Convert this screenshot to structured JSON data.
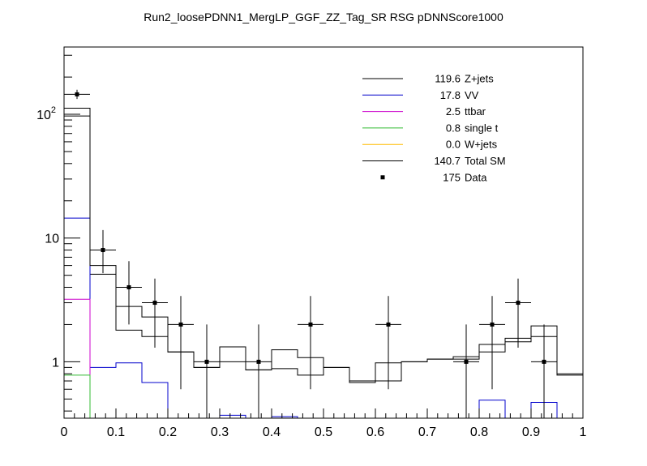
{
  "chart_data": {
    "type": "histogram",
    "title": "Run2_loosePDNN1_MergLP_GGF_ZZ_Tag_SR RSG  pDNNScore1000",
    "xlabel": "",
    "ylabel": "",
    "xlim": [
      0,
      1
    ],
    "ylim": [
      0.35,
      350
    ],
    "y_scale": "log",
    "x_ticks": [
      "0",
      "0.1",
      "0.2",
      "0.3",
      "0.4",
      "0.5",
      "0.6",
      "0.7",
      "0.8",
      "0.9",
      "1"
    ],
    "y_ticks": [
      {
        "value": 1,
        "label": "1"
      },
      {
        "value": 10,
        "label": "10"
      },
      {
        "value": 100,
        "label": "10",
        "exponent": "2"
      }
    ],
    "grid": false,
    "legend_position": "top-right",
    "bin_edges": [
      0,
      0.05,
      0.1,
      0.15,
      0.2,
      0.25,
      0.3,
      0.35,
      0.4,
      0.45,
      0.5,
      0.55,
      0.6,
      0.65,
      0.7,
      0.75,
      0.8,
      0.85,
      0.9,
      0.95,
      1.0
    ],
    "series": [
      {
        "name": "Z+jets",
        "total": "119.6",
        "color": "#000000",
        "kind": "stack-step",
        "values": [
          97,
          5.1,
          1.8,
          1.6,
          1.2,
          0.9,
          1.0,
          0.86,
          0.88,
          0.78,
          0.9,
          0.68,
          0.7,
          1.0,
          1.05,
          1.05,
          1.2,
          1.45,
          1.6,
          0.8
        ]
      },
      {
        "name": "VV",
        "total": "17.8",
        "color": "#0000cc",
        "kind": "step",
        "values": [
          14.5,
          0.9,
          0.98,
          0.68,
          0.0,
          0.0,
          0.37,
          0.0,
          0.36,
          0.0,
          0.0,
          0.0,
          0.0,
          0.0,
          0.0,
          0.0,
          0.49,
          0.0,
          0.47,
          0.0
        ]
      },
      {
        "name": "ttbar",
        "total": "2.5",
        "color": "#cc00cc",
        "kind": "step",
        "values": [
          3.2,
          0,
          0,
          0,
          0,
          0,
          0,
          0,
          0,
          0,
          0,
          0,
          0,
          0,
          0,
          0,
          0,
          0,
          0,
          0
        ]
      },
      {
        "name": "single t",
        "total": "0.8",
        "color": "#33bb33",
        "kind": "step",
        "values": [
          0.78,
          0,
          0,
          0,
          0,
          0,
          0,
          0,
          0,
          0,
          0,
          0,
          0,
          0,
          0,
          0,
          0,
          0,
          0,
          0
        ]
      },
      {
        "name": "W+jets",
        "total": "0.0",
        "color": "#ffbb00",
        "kind": "step",
        "values": [
          0,
          0,
          0,
          0,
          0,
          0,
          0,
          0,
          0,
          0,
          0,
          0,
          0,
          0,
          0,
          0,
          0,
          0,
          0,
          0
        ]
      },
      {
        "name": "Total SM",
        "total": "140.7",
        "color": "#000000",
        "kind": "step",
        "values": [
          112,
          6.0,
          2.8,
          2.3,
          1.2,
          0.9,
          1.32,
          0.86,
          1.25,
          1.08,
          0.9,
          0.7,
          0.98,
          1.0,
          1.05,
          1.1,
          1.38,
          1.55,
          1.95,
          0.78
        ]
      }
    ],
    "data_points": {
      "name": "Data",
      "total": "175",
      "color": "#000000",
      "points": [
        {
          "x": 0.025,
          "y": 145,
          "ylo": 133,
          "yhi": 158
        },
        {
          "x": 0.075,
          "y": 8,
          "ylo": 5.2,
          "yhi": 11.6
        },
        {
          "x": 0.125,
          "y": 4,
          "ylo": 2.0,
          "yhi": 6.5
        },
        {
          "x": 0.175,
          "y": 3,
          "ylo": 1.3,
          "yhi": 4.7
        },
        {
          "x": 0.225,
          "y": 2,
          "ylo": 0.6,
          "yhi": 3.4
        },
        {
          "x": 0.275,
          "y": 1,
          "ylo": 0.17,
          "yhi": 2.0
        },
        {
          "x": 0.375,
          "y": 1,
          "ylo": 0.17,
          "yhi": 2.0
        },
        {
          "x": 0.475,
          "y": 2,
          "ylo": 0.6,
          "yhi": 3.4
        },
        {
          "x": 0.625,
          "y": 2,
          "ylo": 0.6,
          "yhi": 3.4
        },
        {
          "x": 0.775,
          "y": 1,
          "ylo": 0.17,
          "yhi": 2.0
        },
        {
          "x": 0.825,
          "y": 2,
          "ylo": 0.6,
          "yhi": 3.4
        },
        {
          "x": 0.875,
          "y": 3,
          "ylo": 1.3,
          "yhi": 4.7
        },
        {
          "x": 0.925,
          "y": 1,
          "ylo": 0.17,
          "yhi": 2.0
        }
      ]
    }
  }
}
